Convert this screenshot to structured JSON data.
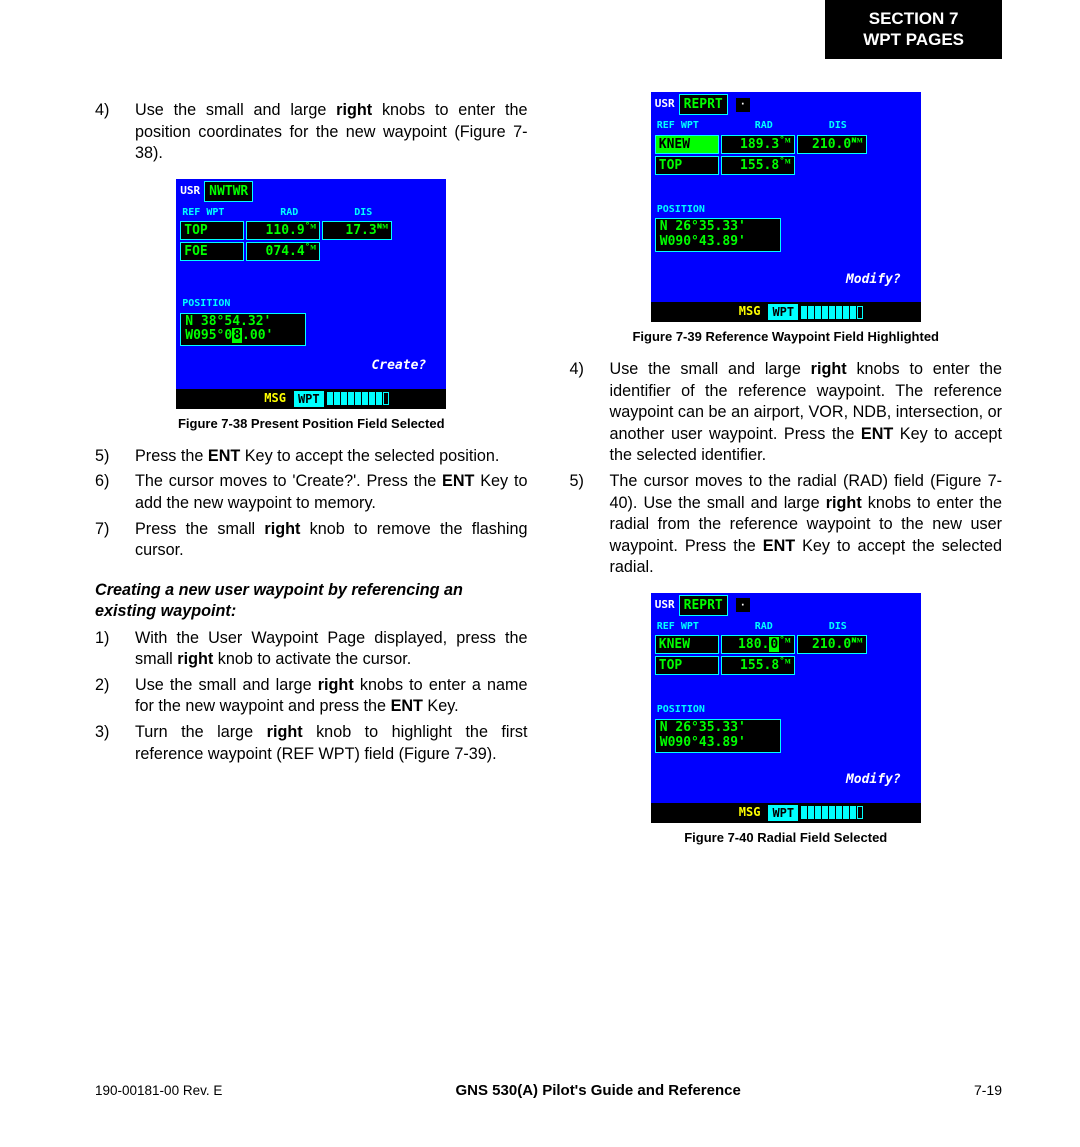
{
  "header": {
    "line1": "SECTION 7",
    "line2": "WPT PAGES"
  },
  "col1": {
    "items_a": [
      {
        "num": "4)",
        "html": "Use the small and large <b>right</b> knobs to enter the position coordinates for the new waypoint (Figure 7-38)."
      }
    ],
    "fig38_caption": "Figure 7-38  Present Position Field Selected",
    "items_b": [
      {
        "num": "5)",
        "html": "Press the <b>ENT</b> Key to accept the selected position."
      },
      {
        "num": "6)",
        "html": "The cursor moves to 'Create?'. Press the <b>ENT</b> Key to add the new waypoint to memory."
      },
      {
        "num": "7)",
        "html": "Press the small <b>right</b> knob to remove the flashing cursor."
      }
    ],
    "subhead": "Creating a new user waypoint by referencing an existing waypoint:",
    "items_c": [
      {
        "num": "1)",
        "html": "With the User Waypoint Page displayed, press the small <b>right</b> knob to activate the cursor."
      },
      {
        "num": "2)",
        "html": "Use the small and large <b>right</b> knobs to enter a name for the new waypoint and press the <b>ENT</b> Key."
      },
      {
        "num": "3)",
        "html": "Turn the large <b>right</b> knob to highlight the first reference waypoint (REF WPT) field (Figure 7-39)."
      }
    ]
  },
  "col2": {
    "fig39_caption": "Figure 7-39  Reference Waypoint Field Highlighted",
    "items_a": [
      {
        "num": "4)",
        "html": "Use the small and large <b>right</b> knobs to enter the identifier of the reference waypoint. The reference waypoint can be an airport, VOR, NDB, intersection, or another user waypoint. Press the <b>ENT</b> Key to accept the selected identifier."
      },
      {
        "num": "5)",
        "html": "The cursor moves to the radial (RAD) field (Figure 7-40). Use the small and large <b>right</b> knobs to enter the radial from the reference waypoint to the new user waypoint. Press the <b>ENT</b> Key to accept the selected radial."
      }
    ],
    "fig40_caption": "Figure 7-40  Radial Field Selected"
  },
  "screens": {
    "s38": {
      "usr": "NWTWR",
      "hdr": [
        "REF WPT",
        "RAD",
        "DIS"
      ],
      "rows": [
        {
          "ref": "TOP",
          "rad": "110.9",
          "rad_u": "°ᴍ",
          "dis": "17.3",
          "dis_u": "ɴᴍ"
        },
        {
          "ref": "FOE",
          "rad": "074.4",
          "rad_u": "°ᴍ",
          "dis": "",
          "dis_u": ""
        }
      ],
      "pos_label": "POSITION",
      "pos_l1": "N 38°54.32'",
      "pos_l2_pre": "W095°0",
      "pos_l2_inv": "8",
      "pos_l2_post": ".00'",
      "action": "Create?",
      "msg": "MSG",
      "wpt": "WPT",
      "bars_total": 9,
      "bars_filled": 8
    },
    "s39": {
      "usr": "REPRT",
      "hdr": [
        "REF WPT",
        "RAD",
        "DIS"
      ],
      "rows": [
        {
          "ref": "KNEW",
          "ref_inv": true,
          "rad": "189.3",
          "rad_u": "°ᴍ",
          "dis": "210.0",
          "dis_u": "ɴᴍ"
        },
        {
          "ref": "TOP",
          "rad": "155.8",
          "rad_u": "°ᴍ",
          "dis": "",
          "dis_u": ""
        }
      ],
      "pos_label": "POSITION",
      "pos_l1": "N 26°35.33'",
      "pos_l2": "W090°43.89'",
      "action": "Modify?",
      "msg": "MSG",
      "wpt": "WPT",
      "bars_total": 9,
      "bars_filled": 8
    },
    "s40": {
      "usr": "REPRT",
      "hdr": [
        "REF WPT",
        "RAD",
        "DIS"
      ],
      "rows": [
        {
          "ref": "KNEW",
          "rad_pre": "180.",
          "rad_inv": "0",
          "rad_post": "",
          "rad_u": "°ᴍ",
          "dis": "210.0",
          "dis_u": "ɴᴍ"
        },
        {
          "ref": "TOP",
          "rad": "155.8",
          "rad_u": "°ᴍ",
          "dis": "",
          "dis_u": ""
        }
      ],
      "pos_label": "POSITION",
      "pos_l1": "N 26°35.33'",
      "pos_l2": "W090°43.89'",
      "action": "Modify?",
      "msg": "MSG",
      "wpt": "WPT",
      "bars_total": 9,
      "bars_filled": 8
    }
  },
  "footer": {
    "rev": "190-00181-00  Rev. E",
    "title": "GNS 530(A) Pilot's Guide and Reference",
    "page": "7-19"
  },
  "colors": {
    "screen_bg": "#0000ff",
    "border": "#00ffff",
    "text_green": "#00ff00",
    "text_yellow": "#ffff00",
    "text_cyan": "#00ffff",
    "black": "#000000",
    "white": "#ffffff"
  }
}
